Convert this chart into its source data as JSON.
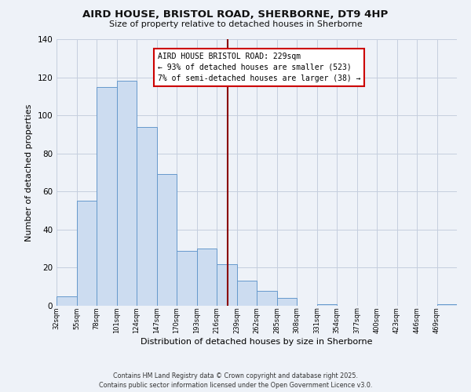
{
  "title": "AIRD HOUSE, BRISTOL ROAD, SHERBORNE, DT9 4HP",
  "subtitle": "Size of property relative to detached houses in Sherborne",
  "xlabel": "Distribution of detached houses by size in Sherborne",
  "ylabel": "Number of detached properties",
  "bar_color": "#ccdcf0",
  "bar_edge_color": "#6699cc",
  "background_color": "#eef2f8",
  "grid_color": "#c5cede",
  "bins": [
    32,
    55,
    78,
    101,
    124,
    147,
    170,
    193,
    216,
    239,
    262,
    285,
    308,
    331,
    354,
    377,
    400,
    423,
    446,
    469,
    492
  ],
  "counts": [
    5,
    55,
    115,
    118,
    94,
    69,
    29,
    30,
    22,
    13,
    8,
    4,
    0,
    1,
    0,
    0,
    0,
    0,
    0,
    1
  ],
  "vline_x": 229,
  "vline_color": "#8b0000",
  "annotation_title": "AIRD HOUSE BRISTOL ROAD: 229sqm",
  "annotation_line1": "← 93% of detached houses are smaller (523)",
  "annotation_line2": "7% of semi-detached houses are larger (38) →",
  "annotation_box_color": "#ffffff",
  "annotation_box_edge": "#cc0000",
  "ylim": [
    0,
    140
  ],
  "yticks": [
    0,
    20,
    40,
    60,
    80,
    100,
    120,
    140
  ],
  "footer1": "Contains HM Land Registry data © Crown copyright and database right 2025.",
  "footer2": "Contains public sector information licensed under the Open Government Licence v3.0."
}
